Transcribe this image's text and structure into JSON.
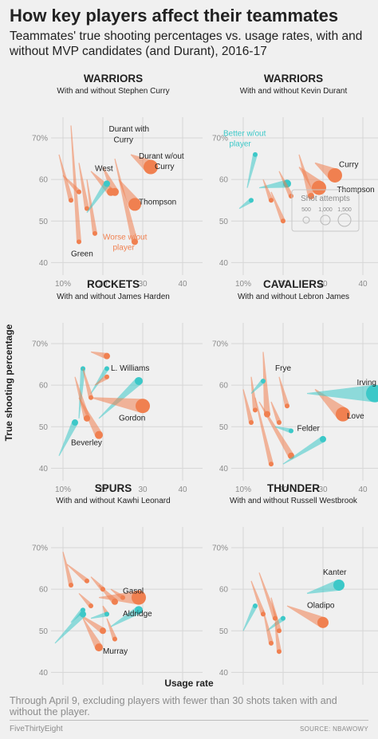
{
  "title": "How key players affect their teammates",
  "subtitle": "Teammates' true shooting percentages vs. usage rates, with and without MVP candidates (and Durant), 2016-17",
  "ylabel": "True shooting percentage",
  "xlabel": "Usage rate",
  "footnote": "Through April 9, excluding players with fewer than 30 shots taken with and without the player.",
  "brand": "FiveThirtyEight",
  "source": "SOURCE: NBAWOWY",
  "colors": {
    "worse": "#f08050",
    "better": "#3cc8c8",
    "grid": "#d6d6d6"
  },
  "legend": {
    "title": "Shot attempts",
    "sizes": [
      "500",
      "1,000",
      "1,500"
    ]
  },
  "chart_data": [
    {
      "type": "scatter",
      "title": "WARRIORS",
      "subtitle": "With and without Stephen Curry",
      "xticks": [
        "10%",
        "20",
        "30",
        "40"
      ],
      "yticks": [
        "70%",
        "60",
        "50",
        "40"
      ],
      "xlim": [
        7,
        45
      ],
      "ylim": [
        37,
        75
      ],
      "segments": [
        {
          "x1": 9,
          "y1": 66,
          "x2": 12,
          "y2": 55,
          "w": 3,
          "c": "worse"
        },
        {
          "x1": 12,
          "y1": 73,
          "x2": 14,
          "y2": 45,
          "w": 3,
          "c": "worse"
        },
        {
          "x1": 14,
          "y1": 64,
          "x2": 16,
          "y2": 53,
          "w": 3,
          "c": "worse"
        },
        {
          "x1": 16,
          "y1": 60,
          "x2": 18,
          "y2": 47,
          "w": 3,
          "c": "worse"
        },
        {
          "x1": 10,
          "y1": 61,
          "x2": 14,
          "y2": 57,
          "w": 3,
          "c": "worse"
        },
        {
          "x1": 17,
          "y1": 62,
          "x2": 22,
          "y2": 57,
          "w": 5,
          "c": "worse"
        },
        {
          "x1": 20,
          "y1": 63,
          "x2": 23,
          "y2": 57,
          "w": 5,
          "c": "worse"
        },
        {
          "x1": 23,
          "y1": 65,
          "x2": 28,
          "y2": 45,
          "w": 4,
          "c": "worse"
        },
        {
          "x1": 24,
          "y1": 60,
          "x2": 28,
          "y2": 54,
          "w": 8,
          "c": "worse"
        },
        {
          "x1": 27,
          "y1": 66,
          "x2": 32,
          "y2": 63,
          "w": 9,
          "c": "worse"
        },
        {
          "x1": 16,
          "y1": 52,
          "x2": 21,
          "y2": 59,
          "w": 4,
          "c": "better"
        }
      ],
      "labels": [
        {
          "text": "West",
          "x": 18,
          "y": 62,
          "style": "ann"
        },
        {
          "text": "Thompson",
          "x": 29,
          "y": 54,
          "style": "ann"
        },
        {
          "text": "Green",
          "x": 12,
          "y": 41.5,
          "style": "ann"
        },
        {
          "text": "Durant with",
          "x": 21.5,
          "y": 71.5,
          "style": "ann"
        },
        {
          "text": "Curry",
          "x": 22.7,
          "y": 69,
          "style": "ann"
        },
        {
          "text": "Durant w/out",
          "x": 29,
          "y": 65,
          "style": "ann"
        },
        {
          "text": "Curry",
          "x": 33,
          "y": 62.5,
          "style": "ann"
        },
        {
          "text": "Worse w/out",
          "x": 20,
          "y": 45.5,
          "style": "ann-orange"
        },
        {
          "text": "player",
          "x": 22.5,
          "y": 43,
          "style": "ann-orange"
        }
      ]
    },
    {
      "type": "scatter",
      "title": "WARRIORS",
      "subtitle": "With and without Kevin Durant",
      "xticks": [
        "10%",
        "20",
        "30",
        "40"
      ],
      "yticks": [
        "70%",
        "60",
        "50",
        "40"
      ],
      "xlim": [
        7,
        45
      ],
      "ylim": [
        37,
        75
      ],
      "segments": [
        {
          "x1": 9,
          "y1": 53,
          "x2": 12,
          "y2": 55,
          "w": 3,
          "c": "better"
        },
        {
          "x1": 11,
          "y1": 58,
          "x2": 13,
          "y2": 66,
          "w": 3,
          "c": "better"
        },
        {
          "x1": 14,
          "y1": 58,
          "x2": 21,
          "y2": 59,
          "w": 5,
          "c": "better"
        },
        {
          "x1": 15,
          "y1": 60,
          "x2": 17,
          "y2": 55,
          "w": 3,
          "c": "worse"
        },
        {
          "x1": 17,
          "y1": 57,
          "x2": 20,
          "y2": 50,
          "w": 3,
          "c": "worse"
        },
        {
          "x1": 19,
          "y1": 62,
          "x2": 22,
          "y2": 56,
          "w": 3,
          "c": "worse"
        },
        {
          "x1": 24,
          "y1": 66,
          "x2": 27,
          "y2": 56,
          "w": 4,
          "c": "worse"
        },
        {
          "x1": 24,
          "y1": 63,
          "x2": 29,
          "y2": 58,
          "w": 9,
          "c": "worse"
        },
        {
          "x1": 28,
          "y1": 64,
          "x2": 33,
          "y2": 61,
          "w": 9,
          "c": "worse"
        }
      ],
      "labels": [
        {
          "text": "Better w/out",
          "x": 5,
          "y": 70.5,
          "style": "ann-teal"
        },
        {
          "text": "player",
          "x": 6.5,
          "y": 68,
          "style": "ann-teal"
        },
        {
          "text": "Curry",
          "x": 34,
          "y": 63,
          "style": "ann"
        },
        {
          "text": "Thompson",
          "x": 33.5,
          "y": 57,
          "style": "ann"
        }
      ]
    },
    {
      "type": "scatter",
      "title": "ROCKETS",
      "subtitle": "With and without James Harden",
      "xticks": [
        "10%",
        "20",
        "30",
        "40"
      ],
      "yticks": [
        "70%",
        "60",
        "50",
        "40"
      ],
      "xlim": [
        7,
        45
      ],
      "ylim": [
        37,
        75
      ],
      "segments": [
        {
          "x1": 9,
          "y1": 43,
          "x2": 13,
          "y2": 51,
          "w": 4,
          "c": "better"
        },
        {
          "x1": 14,
          "y1": 52,
          "x2": 15,
          "y2": 64,
          "w": 3,
          "c": "better"
        },
        {
          "x1": 17,
          "y1": 58,
          "x2": 21,
          "y2": 64,
          "w": 3,
          "c": "better"
        },
        {
          "x1": 19,
          "y1": 52,
          "x2": 29,
          "y2": 61,
          "w": 5,
          "c": "better"
        },
        {
          "x1": 13,
          "y1": 62,
          "x2": 16,
          "y2": 52,
          "w": 4,
          "c": "worse"
        },
        {
          "x1": 14,
          "y1": 57,
          "x2": 19,
          "y2": 48,
          "w": 5,
          "c": "worse"
        },
        {
          "x1": 15,
          "y1": 64,
          "x2": 17,
          "y2": 57,
          "w": 3,
          "c": "worse"
        },
        {
          "x1": 17,
          "y1": 68,
          "x2": 21,
          "y2": 67,
          "w": 4,
          "c": "worse"
        },
        {
          "x1": 18,
          "y1": 60,
          "x2": 21,
          "y2": 62,
          "w": 3,
          "c": "worse"
        },
        {
          "x1": 17,
          "y1": 57,
          "x2": 30,
          "y2": 55,
          "w": 9,
          "c": "worse"
        }
      ],
      "labels": [
        {
          "text": "L. Williams",
          "x": 22,
          "y": 63.5,
          "style": "ann"
        },
        {
          "text": "Gordon",
          "x": 24,
          "y": 51.5,
          "style": "ann"
        },
        {
          "text": "Beverley",
          "x": 12,
          "y": 45.5,
          "style": "ann"
        }
      ]
    },
    {
      "type": "scatter",
      "title": "CAVALIERS",
      "subtitle": "With and without Lebron James",
      "xticks": [
        "10%",
        "20",
        "30",
        "40"
      ],
      "yticks": [
        "70%",
        "60",
        "50",
        "40"
      ],
      "xlim": [
        7,
        45
      ],
      "ylim": [
        37,
        75
      ],
      "segments": [
        {
          "x1": 10,
          "y1": 59,
          "x2": 12,
          "y2": 51,
          "w": 3,
          "c": "worse"
        },
        {
          "x1": 12,
          "y1": 62,
          "x2": 13,
          "y2": 54,
          "w": 3,
          "c": "worse"
        },
        {
          "x1": 13,
          "y1": 57,
          "x2": 17,
          "y2": 41,
          "w": 3,
          "c": "worse"
        },
        {
          "x1": 15,
          "y1": 68,
          "x2": 16,
          "y2": 53,
          "w": 4,
          "c": "worse"
        },
        {
          "x1": 14,
          "y1": 56,
          "x2": 22,
          "y2": 43,
          "w": 4,
          "c": "worse"
        },
        {
          "x1": 17,
          "y1": 56,
          "x2": 19,
          "y2": 51,
          "w": 3,
          "c": "worse"
        },
        {
          "x1": 19,
          "y1": 62,
          "x2": 21,
          "y2": 55,
          "w": 3,
          "c": "worse"
        },
        {
          "x1": 28,
          "y1": 59,
          "x2": 35,
          "y2": 53,
          "w": 9,
          "c": "worse"
        },
        {
          "x1": 12,
          "y1": 58,
          "x2": 15,
          "y2": 61,
          "w": 3,
          "c": "better"
        },
        {
          "x1": 18,
          "y1": 50,
          "x2": 22,
          "y2": 49,
          "w": 3,
          "c": "better"
        },
        {
          "x1": 20,
          "y1": 41,
          "x2": 30,
          "y2": 47,
          "w": 4,
          "c": "better"
        },
        {
          "x1": 26,
          "y1": 58,
          "x2": 43,
          "y2": 58,
          "w": 11,
          "c": "better"
        }
      ],
      "labels": [
        {
          "text": "Frye",
          "x": 18,
          "y": 63.5,
          "style": "ann"
        },
        {
          "text": "Irving",
          "x": 38.5,
          "y": 60,
          "style": "ann"
        },
        {
          "text": "Love",
          "x": 36,
          "y": 52,
          "style": "ann"
        },
        {
          "text": "Felder",
          "x": 23.5,
          "y": 49,
          "style": "ann"
        }
      ]
    },
    {
      "type": "scatter",
      "title": "SPURS",
      "subtitle": "With and without Kawhi Leonard",
      "xticks": [
        "10%",
        "20",
        "30",
        "40"
      ],
      "yticks": [
        "70%",
        "60",
        "50",
        "40"
      ],
      "xlim": [
        7,
        45
      ],
      "ylim": [
        37,
        75
      ],
      "segments": [
        {
          "x1": 10,
          "y1": 69,
          "x2": 12,
          "y2": 61,
          "w": 3,
          "c": "worse"
        },
        {
          "x1": 11,
          "y1": 66,
          "x2": 16,
          "y2": 62,
          "w": 3,
          "c": "worse"
        },
        {
          "x1": 14,
          "y1": 59,
          "x2": 17,
          "y2": 56,
          "w": 3,
          "c": "worse"
        },
        {
          "x1": 14,
          "y1": 54,
          "x2": 20,
          "y2": 50,
          "w": 4,
          "c": "worse"
        },
        {
          "x1": 15,
          "y1": 53,
          "x2": 19,
          "y2": 46,
          "w": 5,
          "c": "worse"
        },
        {
          "x1": 17,
          "y1": 63,
          "x2": 20,
          "y2": 60,
          "w": 3,
          "c": "worse"
        },
        {
          "x1": 19,
          "y1": 61,
          "x2": 23,
          "y2": 57,
          "w": 4,
          "c": "worse"
        },
        {
          "x1": 20,
          "y1": 56,
          "x2": 21,
          "y2": 54,
          "w": 3,
          "c": "worse"
        },
        {
          "x1": 21,
          "y1": 53,
          "x2": 23,
          "y2": 48,
          "w": 3,
          "c": "worse"
        },
        {
          "x1": 19,
          "y1": 58,
          "x2": 29,
          "y2": 58,
          "w": 9,
          "c": "worse"
        },
        {
          "x1": 22,
          "y1": 60,
          "x2": 25,
          "y2": 58,
          "w": 3,
          "c": "worse"
        },
        {
          "x1": 8,
          "y1": 47,
          "x2": 15,
          "y2": 54,
          "w": 4,
          "c": "better"
        },
        {
          "x1": 12,
          "y1": 52,
          "x2": 15,
          "y2": 55,
          "w": 3,
          "c": "better"
        },
        {
          "x1": 17,
          "y1": 53,
          "x2": 21,
          "y2": 54,
          "w": 3,
          "c": "better"
        },
        {
          "x1": 22,
          "y1": 51,
          "x2": 29,
          "y2": 55,
          "w": 5,
          "c": "better"
        }
      ],
      "labels": [
        {
          "text": "Gasol",
          "x": 25,
          "y": 59,
          "style": "ann"
        },
        {
          "text": "Aldridge",
          "x": 25,
          "y": 53.5,
          "style": "ann"
        },
        {
          "text": "Murray",
          "x": 20,
          "y": 44.5,
          "style": "ann"
        }
      ]
    },
    {
      "type": "scatter",
      "title": "THUNDER",
      "subtitle": "With and without Russell Westbrook",
      "xticks": [
        "10%",
        "20",
        "30",
        "40"
      ],
      "yticks": [
        "70%",
        "60",
        "50",
        "40"
      ],
      "xlim": [
        7,
        45
      ],
      "ylim": [
        37,
        75
      ],
      "segments": [
        {
          "x1": 10,
          "y1": 50,
          "x2": 13,
          "y2": 56,
          "w": 3,
          "c": "better"
        },
        {
          "x1": 16,
          "y1": 50,
          "x2": 20,
          "y2": 53,
          "w": 3,
          "c": "better"
        },
        {
          "x1": 26,
          "y1": 59,
          "x2": 34,
          "y2": 61,
          "w": 7,
          "c": "better"
        },
        {
          "x1": 12,
          "y1": 62,
          "x2": 15,
          "y2": 54,
          "w": 3,
          "c": "worse"
        },
        {
          "x1": 14,
          "y1": 64,
          "x2": 18,
          "y2": 53,
          "w": 3,
          "c": "worse"
        },
        {
          "x1": 17,
          "y1": 58,
          "x2": 19,
          "y2": 50,
          "w": 3,
          "c": "worse"
        },
        {
          "x1": 18,
          "y1": 52,
          "x2": 19,
          "y2": 45,
          "w": 3,
          "c": "worse"
        },
        {
          "x1": 15,
          "y1": 55,
          "x2": 17,
          "y2": 47,
          "w": 3,
          "c": "worse"
        },
        {
          "x1": 21,
          "y1": 56,
          "x2": 30,
          "y2": 52,
          "w": 7,
          "c": "worse"
        }
      ],
      "labels": [
        {
          "text": "Kanter",
          "x": 30,
          "y": 63.5,
          "style": "ann"
        },
        {
          "text": "Oladipo",
          "x": 26,
          "y": 55.5,
          "style": "ann"
        }
      ]
    }
  ]
}
